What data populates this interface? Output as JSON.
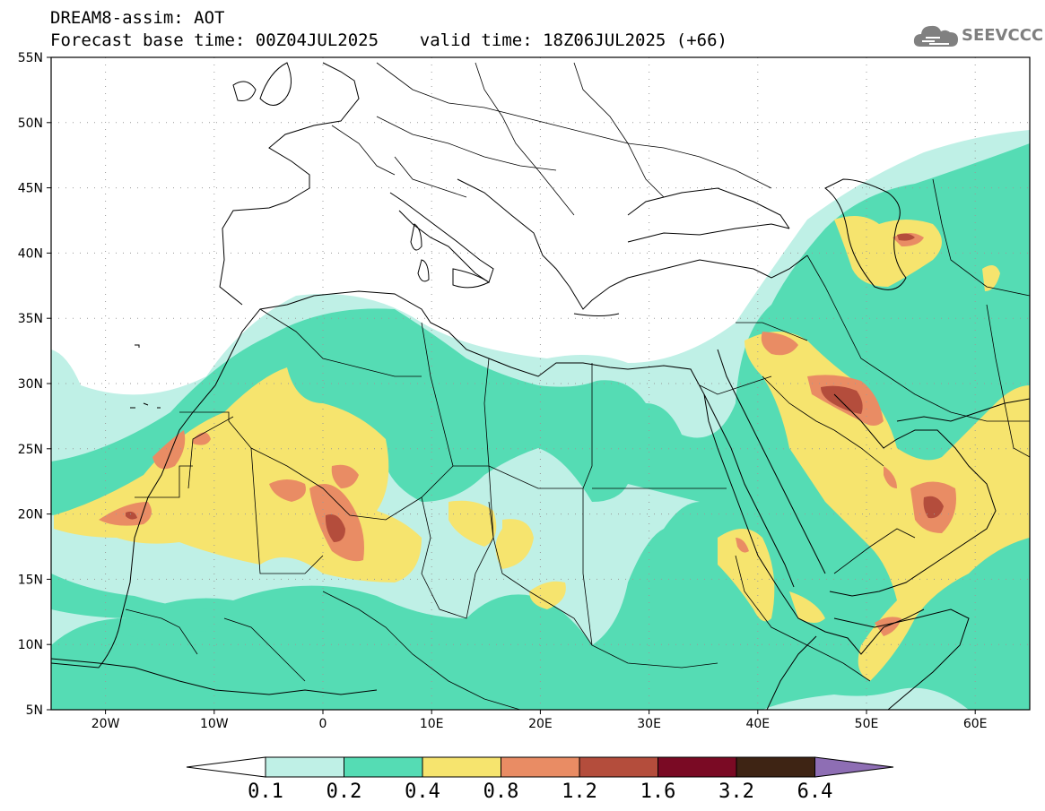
{
  "header": {
    "line1": "DREAM8-assim: AOT",
    "line2": "Forecast base time: 00Z04JUL2025    valid time: 18Z06JUL2025 (+66)"
  },
  "logo": {
    "text": "SEEVCCC",
    "icon": "cloud-icon",
    "color": "#7f7f7f"
  },
  "map": {
    "variable": "AOT",
    "lon_range": [
      -25,
      65
    ],
    "lat_range": [
      5,
      55
    ],
    "lat_ticks": [
      "55N",
      "50N",
      "45N",
      "40N",
      "35N",
      "30N",
      "25N",
      "20N",
      "15N",
      "10N",
      "5N"
    ],
    "lon_ticks": [
      "20W",
      "10W",
      "0",
      "10E",
      "20E",
      "30E",
      "40E",
      "50E",
      "60E"
    ],
    "gridlines": "dotted"
  },
  "colorbar": {
    "levels": [
      "0.1",
      "0.2",
      "0.4",
      "0.8",
      "1.2",
      "1.6",
      "3.2",
      "6.4"
    ],
    "colors": [
      "#ffffff",
      "#bff0e6",
      "#55dcb4",
      "#f6e46e",
      "#e98c64",
      "#b44d3c",
      "#7a0a24",
      "#3e2414",
      "#8e6eb4"
    ]
  }
}
